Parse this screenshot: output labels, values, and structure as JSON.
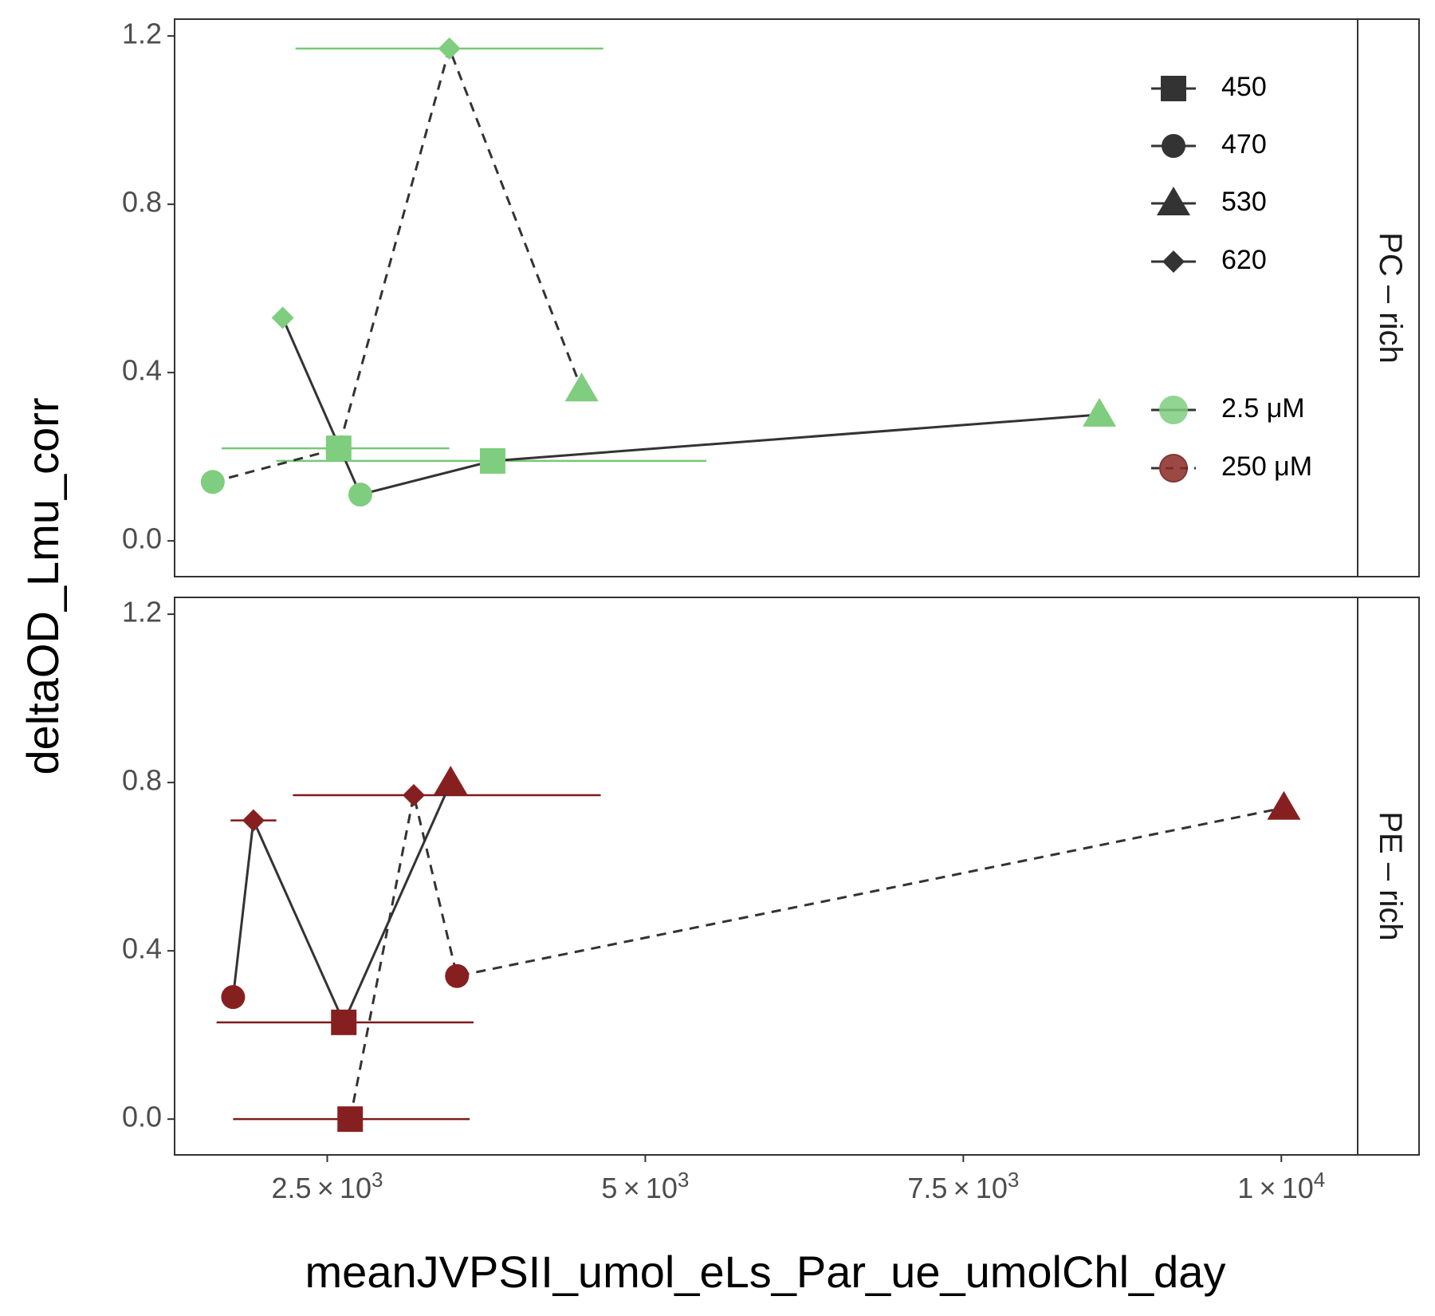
{
  "chart_data": {
    "type": "scatter",
    "xlabel": "meanJVPSII_umol_eLs_Par_ue_umolChl_day",
    "ylabel": "deltaOD_Lmu_corr",
    "xlim": [
      1300,
      10600
    ],
    "ylim": [
      -0.085,
      1.24
    ],
    "x_ticks": [
      {
        "value": 2500,
        "mant": "2.5",
        "exp": "3"
      },
      {
        "value": 5000,
        "mant": "5",
        "exp": "3"
      },
      {
        "value": 7500,
        "mant": "7.5",
        "exp": "3"
      },
      {
        "value": 10000,
        "mant": "1",
        "exp": "4"
      }
    ],
    "y_ticks": [
      {
        "value": 0.0,
        "label": "0.0"
      },
      {
        "value": 0.4,
        "label": "0.4"
      },
      {
        "value": 0.8,
        "label": "0.8"
      },
      {
        "value": 1.2,
        "label": "1.2"
      }
    ],
    "legend": {
      "shape_title": "",
      "shapes": [
        {
          "label": "450",
          "shape": "square"
        },
        {
          "label": "470",
          "shape": "circle"
        },
        {
          "label": "530",
          "shape": "triangle"
        },
        {
          "label": "620",
          "shape": "diamond"
        }
      ],
      "groups": [
        {
          "label": " 2.5 μM",
          "linetype": "solid"
        },
        {
          "label": "250 μM",
          "linetype": "dashed"
        }
      ]
    },
    "panels": [
      {
        "strip": "PC – rich",
        "color": "#7fcd7f",
        "errorbar_color": "#76c976",
        "series": [
          {
            "group": " 2.5 μM",
            "linetype": "solid",
            "points": [
              {
                "x": 2150,
                "y": 0.53,
                "shape": "diamond"
              },
              {
                "x": 2760,
                "y": 0.11,
                "shape": "circle"
              },
              {
                "x": 3800,
                "y": 0.19,
                "shape": "square",
                "xerr": [
                  2100,
                  5480
                ]
              },
              {
                "x": 8570,
                "y": 0.3,
                "shape": "triangle"
              }
            ]
          },
          {
            "group": "250 μM",
            "linetype": "dashed",
            "points": [
              {
                "x": 1600,
                "y": 0.14,
                "shape": "circle"
              },
              {
                "x": 2590,
                "y": 0.22,
                "shape": "square",
                "xerr": [
                  1670,
                  3460
                ]
              },
              {
                "x": 3460,
                "y": 1.17,
                "shape": "diamond",
                "xerr": [
                  2250,
                  4670
                ]
              },
              {
                "x": 4500,
                "y": 0.36,
                "shape": "triangle"
              }
            ]
          }
        ]
      },
      {
        "strip": "PE – rich",
        "color": "#862020",
        "errorbar_color": "#7c1c1c",
        "series": [
          {
            "group": " 2.5 μM",
            "linetype": "solid",
            "points": [
              {
                "x": 1760,
                "y": 0.29,
                "shape": "circle"
              },
              {
                "x": 1920,
                "y": 0.71,
                "shape": "diamond",
                "xerr": [
                  1740,
                  2100
                ]
              },
              {
                "x": 2630,
                "y": 0.23,
                "shape": "square",
                "xerr": [
                  1630,
                  3650
                ]
              },
              {
                "x": 3470,
                "y": 0.8,
                "shape": "triangle"
              }
            ]
          },
          {
            "group": "250 μM",
            "linetype": "dashed",
            "points": [
              {
                "x": 2680,
                "y": 0.0,
                "shape": "square",
                "xerr": [
                  1760,
                  3620
                ]
              },
              {
                "x": 3180,
                "y": 0.77,
                "shape": "diamond",
                "xerr": [
                  2230,
                  4650
                ]
              },
              {
                "x": 3520,
                "y": 0.34,
                "shape": "circle"
              },
              {
                "x": 10020,
                "y": 0.74,
                "shape": "triangle"
              }
            ]
          }
        ]
      }
    ]
  }
}
